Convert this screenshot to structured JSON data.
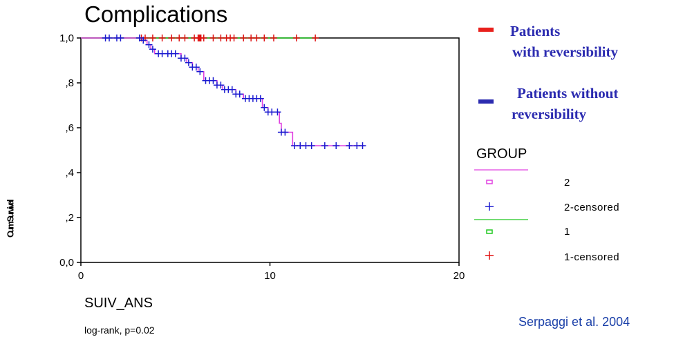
{
  "title": "Complications",
  "xlabel": "SUIV_ANS",
  "ylabel": "Cum Survival",
  "note": "log-rank, p=0.02",
  "citation": "Serpaggi et al. 2004",
  "annotation_legend": [
    {
      "line1": "Patients",
      "line2": "with reversibility",
      "color": "#e8201c"
    },
    {
      "line1": "Patients without",
      "line2": "reversibility",
      "color": "#2b2bb0"
    }
  ],
  "group_legend": {
    "title": "GROUP",
    "entries": [
      {
        "label": "2",
        "marker": "square",
        "color": "#e040e0"
      },
      {
        "label": "2-censored",
        "marker": "plus",
        "color": "#1a1ad0"
      },
      {
        "label": "1",
        "marker": "square",
        "color": "#20c820"
      },
      {
        "label": "1-censored",
        "marker": "plus",
        "color": "#e01010"
      }
    ]
  },
  "chart_data": {
    "type": "line",
    "title": "Complications",
    "xlabel": "SUIV_ANS",
    "ylabel": "Cum Survival",
    "xlim": [
      0,
      20
    ],
    "ylim": [
      0,
      1
    ],
    "xticks": [
      0,
      10,
      20
    ],
    "xtick_labels": [
      "0",
      "10",
      "20"
    ],
    "yticks": [
      0,
      0.2,
      0.4,
      0.6,
      0.8,
      1.0
    ],
    "ytick_labels": [
      "0,0",
      ",2",
      ",4",
      ",6",
      ",8",
      "1,0"
    ],
    "grid": false,
    "series": [
      {
        "name": "1",
        "color": "#20c820",
        "steps": [
          [
            0,
            1.0
          ],
          [
            12.5,
            1.0
          ]
        ],
        "censored_color": "#e01010",
        "censored_x": [
          3.2,
          3.4,
          3.8,
          4.3,
          4.8,
          5.2,
          5.5,
          6.0,
          6.2,
          6.25,
          6.3,
          6.35,
          6.5,
          7.0,
          7.4,
          7.7,
          7.9,
          8.1,
          8.6,
          9.0,
          9.3,
          9.7,
          10.2,
          11.4,
          12.4
        ]
      },
      {
        "name": "2",
        "color": "#e040e0",
        "steps": [
          [
            0,
            1.0
          ],
          [
            3.3,
            0.99
          ],
          [
            3.5,
            0.97
          ],
          [
            3.7,
            0.95
          ],
          [
            3.9,
            0.93
          ],
          [
            5.3,
            0.91
          ],
          [
            5.6,
            0.89
          ],
          [
            5.9,
            0.87
          ],
          [
            6.2,
            0.85
          ],
          [
            6.5,
            0.81
          ],
          [
            7.2,
            0.79
          ],
          [
            7.5,
            0.77
          ],
          [
            8.2,
            0.75
          ],
          [
            8.6,
            0.73
          ],
          [
            9.6,
            0.69
          ],
          [
            9.9,
            0.67
          ],
          [
            10.5,
            0.62
          ],
          [
            10.6,
            0.58
          ],
          [
            11.2,
            0.52
          ],
          [
            15.0,
            0.52
          ]
        ],
        "censored_color": "#1a1ad0",
        "censored_x": [
          1.3,
          1.5,
          1.9,
          2.1,
          3.1,
          3.3,
          3.6,
          3.8,
          4.1,
          4.3,
          4.6,
          4.8,
          5.0,
          5.3,
          5.5,
          5.7,
          5.9,
          6.1,
          6.3,
          6.6,
          6.8,
          7.0,
          7.2,
          7.4,
          7.6,
          7.8,
          8.0,
          8.2,
          8.4,
          8.7,
          8.9,
          9.1,
          9.3,
          9.5,
          9.7,
          9.9,
          10.1,
          10.4,
          10.6,
          10.8,
          11.3,
          11.6,
          11.9,
          12.2,
          12.9,
          13.5,
          14.2,
          14.6,
          14.9
        ]
      }
    ]
  }
}
